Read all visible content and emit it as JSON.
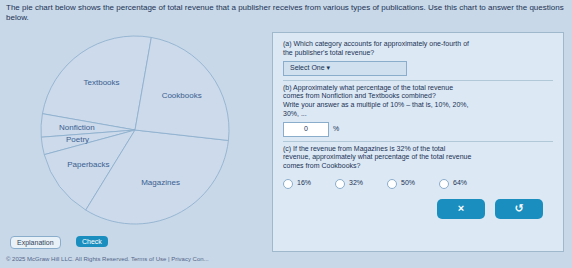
{
  "chart_data": {
    "type": "pie",
    "title": "The pie chart below shows the percentage of total revenue that a publisher receives from various types of publications. Use this chart to answer the questions below.",
    "categories": [
      "Textbooks",
      "Nonfiction",
      "Poetry",
      "Paperbacks",
      "Magazines",
      "Cookbooks"
    ],
    "values": [
      25,
      4,
      3,
      12,
      32,
      24
    ],
    "color": "#ccdaeb",
    "annotations": [
      "(a) Which category accounts for approximately one-fourth of\nthe publisher's total revenue?",
      "Select One ▾",
      "(b) Approximately what percentage of the total revenue\ncomes from Nonfiction and Textbooks combined?\nWrite your answer as a multiple of 10% – that is, 10%, 20%,\n30%, ...",
      "0",
      "%",
      "(c) If the revenue from Magazines is 32% of the total\nrevenue, approximately what percentage of the total revenue\ncomes from Cookbooks?",
      "16%",
      "32%",
      "50%",
      "64%",
      "×",
      "↺",
      "Explanation",
      "Check",
      "© 2025 McGraw Hill LLC. All Rights Reserved.  Terms of Use  |  Privacy Con..."
    ]
  }
}
